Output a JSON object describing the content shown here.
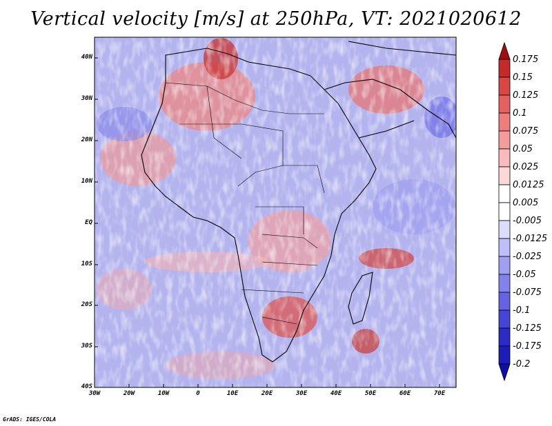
{
  "title": "Vertical velocity [m/s] at 250hPa, VT: 2021020612",
  "lat_labels": [
    "40N",
    "30N",
    "20N",
    "10N",
    "EQ",
    "10S",
    "20S",
    "30S",
    "40S"
  ],
  "lon_labels": [
    "30W",
    "20W",
    "10W",
    "0",
    "10E",
    "20E",
    "30E",
    "40E",
    "50E",
    "60E",
    "70E"
  ],
  "colorbar": {
    "levels": [
      "0.175",
      "0.15",
      "0.125",
      "0.1",
      "0.075",
      "0.05",
      "0.025",
      "0.0125",
      "0.005",
      "-0.005",
      "-0.0125",
      "-0.025",
      "-0.05",
      "-0.075",
      "-0.1",
      "-0.125",
      "-0.175",
      "-0.2"
    ],
    "colors": [
      "#a01010",
      "#c42a2a",
      "#d84646",
      "#e56060",
      "#ee7e7e",
      "#f49c9c",
      "#f8baba",
      "#fcd8d8",
      "#ffffff",
      "#ffffff",
      "#dcdcfb",
      "#bebef8",
      "#a0a0f2",
      "#8282ec",
      "#6464e2",
      "#4646d6",
      "#2a2ac4",
      "#0e0ea8"
    ]
  },
  "credit": "GrADS: IGES/COLA"
}
